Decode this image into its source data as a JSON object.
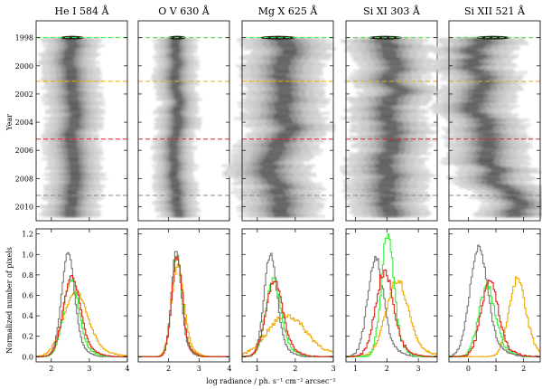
{
  "chart_data": {
    "type": "heatmap",
    "panels": [
      {
        "title": "He I 584 Å",
        "xticks": [
          "2",
          "3",
          "4"
        ],
        "xt": [
          2,
          3,
          4
        ],
        "xlim": [
          1.6,
          4.0
        ],
        "top_center": 2.55,
        "top_width": 0.28,
        "top_drift": 0.05,
        "top_wander": 0.03,
        "series": [
          {
            "name": "1998",
            "color": "#777777",
            "peak": 1.0,
            "mu": 2.42,
            "sd": 0.17,
            "noise": 0.02
          },
          {
            "name": "2001",
            "color": "#f0a800",
            "peak": 0.63,
            "mu": 2.62,
            "sd": 0.32,
            "noise": 0.02
          },
          {
            "name": "2005",
            "color": "#e2231a",
            "peak": 0.78,
            "mu": 2.52,
            "sd": 0.22,
            "noise": 0.02
          },
          {
            "name": "2009",
            "color": "#33ee33",
            "peak": 0.75,
            "mu": 2.5,
            "sd": 0.2,
            "noise": 0.02
          }
        ]
      },
      {
        "title": "O V 630 Å",
        "xticks": [
          "2",
          "3",
          "4"
        ],
        "xt": [
          2,
          3,
          4
        ],
        "xlim": [
          1.0,
          4.0
        ],
        "top_center": 2.28,
        "top_width": 0.26,
        "top_drift": 0.02,
        "top_wander": 0.03,
        "series": [
          {
            "name": "1998",
            "color": "#777777",
            "peak": 1.02,
            "mu": 2.23,
            "sd": 0.16,
            "noise": 0.02
          },
          {
            "name": "2001",
            "color": "#f0a800",
            "peak": 0.88,
            "mu": 2.28,
            "sd": 0.2,
            "noise": 0.02
          },
          {
            "name": "2005",
            "color": "#e2231a",
            "peak": 0.97,
            "mu": 2.25,
            "sd": 0.17,
            "noise": 0.02
          },
          {
            "name": "2009",
            "color": "#33ee33",
            "peak": 0.96,
            "mu": 2.25,
            "sd": 0.17,
            "noise": 0.02
          }
        ]
      },
      {
        "title": "Mg X 625 Å",
        "xticks": [
          "1",
          "2",
          "3"
        ],
        "xt": [
          1,
          2,
          3
        ],
        "xlim": [
          0.6,
          3.0
        ],
        "top_center": 1.55,
        "top_width": 0.42,
        "top_drift": 0.12,
        "top_wander": 0.06,
        "series": [
          {
            "name": "1998",
            "color": "#777777",
            "peak": 1.0,
            "mu": 1.33,
            "sd": 0.17,
            "noise": 0.03
          },
          {
            "name": "2001",
            "color": "#f0a800",
            "peak": 0.4,
            "mu": 1.75,
            "sd": 0.5,
            "noise": 0.03
          },
          {
            "name": "2005",
            "color": "#e2231a",
            "peak": 0.73,
            "mu": 1.43,
            "sd": 0.22,
            "noise": 0.03
          },
          {
            "name": "2009",
            "color": "#33ee33",
            "peak": 0.75,
            "mu": 1.4,
            "sd": 0.2,
            "noise": 0.03
          }
        ]
      },
      {
        "title": "Si XI 303 Å",
        "xticks": [
          "1",
          "2",
          "3"
        ],
        "xt": [
          1,
          2,
          3
        ],
        "xlim": [
          0.7,
          3.6
        ],
        "top_center": 1.95,
        "top_width": 0.48,
        "top_drift": 0.3,
        "top_wander": 0.1,
        "series": [
          {
            "name": "1998",
            "color": "#777777",
            "peak": 0.95,
            "mu": 1.62,
            "sd": 0.25,
            "noise": 0.04
          },
          {
            "name": "2001",
            "color": "#f0a800",
            "peak": 0.75,
            "mu": 2.3,
            "sd": 0.35,
            "noise": 0.04
          },
          {
            "name": "2005",
            "color": "#e2231a",
            "peak": 0.82,
            "mu": 1.9,
            "sd": 0.28,
            "noise": 0.05
          },
          {
            "name": "2009",
            "color": "#33ee33",
            "peak": 1.18,
            "mu": 2.0,
            "sd": 0.2,
            "noise": 0.06
          }
        ]
      },
      {
        "title": "Si XII 521 Å",
        "xticks": [
          "0",
          "1",
          "2"
        ],
        "xt": [
          0,
          1,
          2
        ],
        "xlim": [
          -0.7,
          2.6
        ],
        "top_center": 0.9,
        "top_width": 0.55,
        "top_drift": 0.55,
        "top_wander": 0.15,
        "series": [
          {
            "name": "1998",
            "color": "#777777",
            "peak": 1.05,
            "mu": 0.35,
            "sd": 0.32,
            "noise": 0.03
          },
          {
            "name": "2001",
            "color": "#f0a800",
            "peak": 0.75,
            "mu": 1.75,
            "sd": 0.3,
            "noise": 0.04
          },
          {
            "name": "2005",
            "color": "#e2231a",
            "peak": 0.75,
            "mu": 0.75,
            "sd": 0.3,
            "noise": 0.05
          },
          {
            "name": "2009",
            "color": "#33ee33",
            "peak": 0.68,
            "mu": 0.65,
            "sd": 0.3,
            "noise": 0.05
          }
        ]
      }
    ],
    "top_yticks": [
      "1998",
      "2000",
      "2002",
      "2004",
      "2006",
      "2008",
      "2010"
    ],
    "top_yvals": [
      1998,
      2000,
      2002,
      2004,
      2006,
      2008,
      2010
    ],
    "top_ylim": [
      1996.8,
      2011.0
    ],
    "top_ylabel": "Year",
    "year_lines": [
      {
        "year": 1998.0,
        "color": "#33ee33"
      },
      {
        "year": 2001.1,
        "color": "#f0a800"
      },
      {
        "year": 2005.2,
        "color": "#e2231a"
      },
      {
        "year": 2009.2,
        "color": "#888888"
      }
    ],
    "bottom_yticks": [
      "0.0",
      "0.2",
      "0.4",
      "0.6",
      "0.8",
      "1.0",
      "1.2"
    ],
    "bottom_yvals": [
      0,
      0.2,
      0.4,
      0.6,
      0.8,
      1.0,
      1.2
    ],
    "bottom_ylim": [
      -0.05,
      1.25
    ],
    "bottom_ylabel": "Normalized number of pixels",
    "xlabel": "log radiance / ph. s⁻¹ cm⁻² arcsec⁻²"
  }
}
